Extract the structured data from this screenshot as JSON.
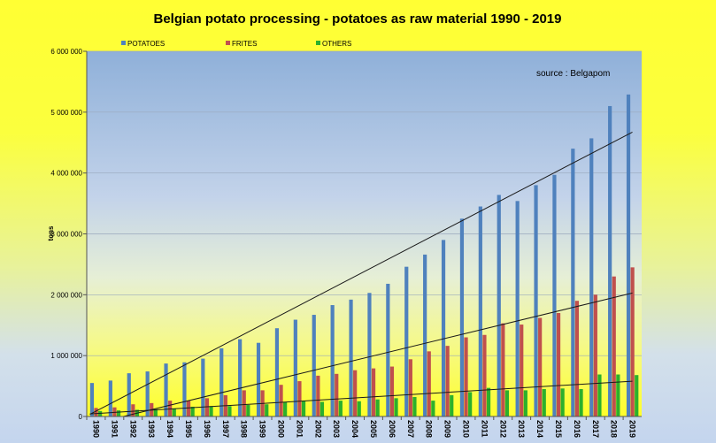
{
  "chart_data": {
    "type": "bar",
    "title": "Belgian potato processing - potatoes as raw material 1990 - 2019",
    "ylabel": "tons",
    "xlabel": "",
    "annotation": "source : Belgapom",
    "ylim": [
      0,
      6000000
    ],
    "yticks": [
      0,
      1000000,
      2000000,
      3000000,
      4000000,
      5000000,
      6000000
    ],
    "ytick_labels": [
      "0",
      "1 000 000",
      "2 000 000",
      "3 000 000",
      "4 000 000",
      "5 000 000",
      "6 000 000"
    ],
    "legend_position": "top-left",
    "grid": true,
    "trendlines": true,
    "categories": [
      "1990",
      "1991",
      "1992",
      "1993",
      "1994",
      "1995",
      "1996",
      "1997",
      "1998",
      "1999",
      "2000",
      "2001",
      "2002",
      "2003",
      "2004",
      "2005",
      "2006",
      "2007",
      "2008",
      "2009",
      "2010",
      "2011",
      "2012",
      "2013",
      "2014",
      "2015",
      "2016",
      "2017",
      "2018",
      "2019"
    ],
    "series": [
      {
        "name": "POTATOES",
        "color": "#4f81bd",
        "values": [
          550000,
          590000,
          710000,
          740000,
          870000,
          890000,
          950000,
          1120000,
          1270000,
          1210000,
          1450000,
          1590000,
          1670000,
          1830000,
          1920000,
          2030000,
          2180000,
          2460000,
          2660000,
          2900000,
          3250000,
          3450000,
          3640000,
          3540000,
          3800000,
          3970000,
          4400000,
          4570000,
          5100000,
          5290000
        ]
      },
      {
        "name": "FRITES",
        "color": "#c0504d",
        "values": [
          140000,
          150000,
          200000,
          220000,
          260000,
          260000,
          300000,
          350000,
          430000,
          430000,
          520000,
          580000,
          670000,
          700000,
          760000,
          790000,
          820000,
          940000,
          1070000,
          1160000,
          1300000,
          1340000,
          1530000,
          1510000,
          1620000,
          1700000,
          1900000,
          2000000,
          2300000,
          2450000
        ]
      },
      {
        "name": "OTHERS",
        "color": "#2cb02c",
        "values": [
          90000,
          100000,
          110000,
          120000,
          130000,
          160000,
          170000,
          170000,
          190000,
          200000,
          240000,
          250000,
          240000,
          260000,
          250000,
          280000,
          300000,
          320000,
          260000,
          350000,
          400000,
          470000,
          430000,
          430000,
          450000,
          460000,
          450000,
          690000,
          690000,
          680000
        ]
      }
    ]
  }
}
